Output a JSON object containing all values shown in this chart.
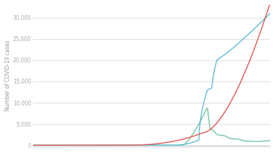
{
  "title": "",
  "ylabel": "Number of COVID-19 cases",
  "ylim": [
    -300,
    33000
  ],
  "yticks": [
    0,
    5000,
    10000,
    15000,
    20000,
    25000,
    30000
  ],
  "background_color": "#ffffff",
  "grid_color": "#d8d8d8",
  "line_colors": {
    "red": "#e05050",
    "blue": "#5bb8d4",
    "green": "#6dc49a"
  },
  "n_points": 300
}
